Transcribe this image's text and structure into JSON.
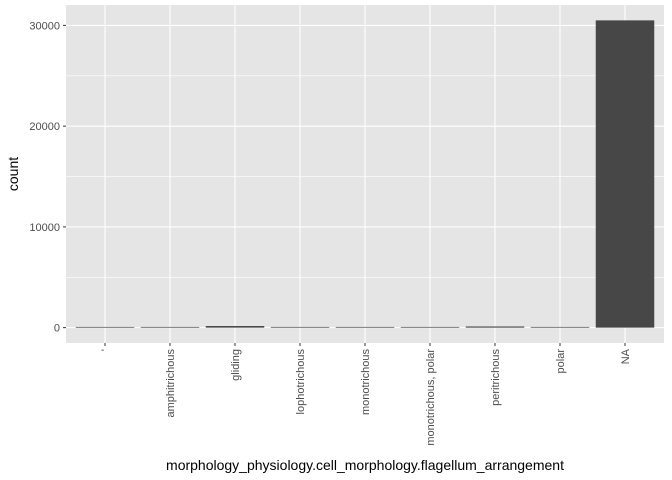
{
  "chart_data": {
    "type": "bar",
    "xlabel": "morphology_physiology.cell_morphology.flagellum_arrangement",
    "ylabel": "count",
    "categories": [
      "'",
      "amphitrichous",
      "gliding",
      "lophotrichous",
      "monotrichous",
      "monotrichous, polar",
      "peritrichous",
      "polar",
      "NA"
    ],
    "values": [
      12,
      2,
      160,
      8,
      6,
      55,
      115,
      40,
      30500
    ],
    "ylim": [
      -1525,
      32025
    ],
    "yticks": [
      0,
      10000,
      20000,
      30000
    ],
    "ytick_labels": [
      "0",
      "10000",
      "20000",
      "30000"
    ],
    "grid": true,
    "legend": "none",
    "colors": {
      "panel_background": "#e5e5e5",
      "grid_major": "#ffffff",
      "bar_fill": "#474747",
      "tick_text": "#4d4d4d",
      "tick_mark": "#333333",
      "axis_title": "#000000"
    }
  }
}
